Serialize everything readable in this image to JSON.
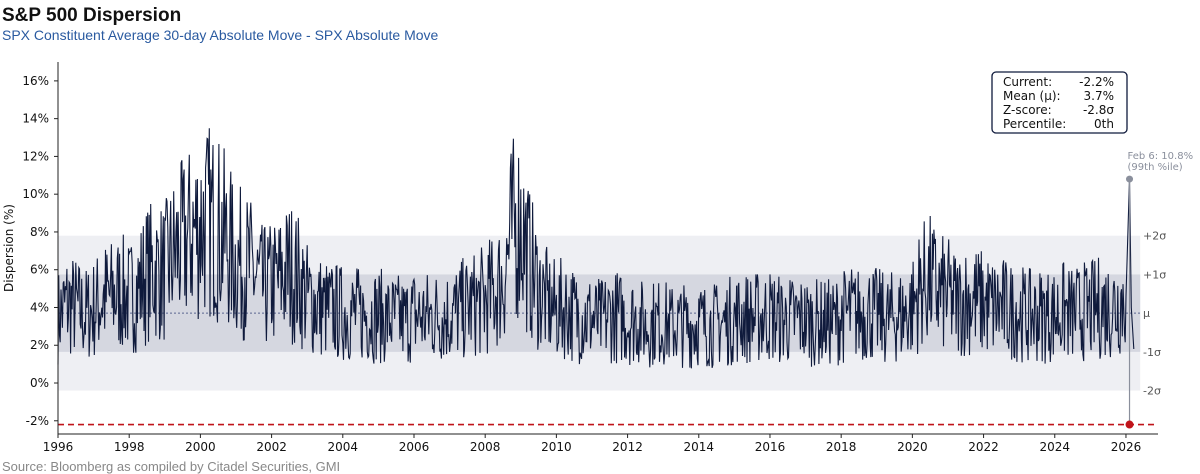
{
  "header": {
    "title": "S&P 500 Dispersion",
    "subtitle": "SPX Constituent Average 30-day Absolute Move - SPX Absolute Move"
  },
  "footer": {
    "source": "Source: Bloomberg as compiled by Citadel Securities, GMI"
  },
  "stats_box": {
    "rows": [
      {
        "label": "Current:",
        "value": "-2.2%"
      },
      {
        "label": "Mean (μ):",
        "value": "3.7%"
      },
      {
        "label": "Z-score:",
        "value": "-2.8σ"
      },
      {
        "label": "Percentile:",
        "value": "0th"
      }
    ]
  },
  "annotation": {
    "line1": "Feb 6: 10.8%",
    "line2": "(99th %ile)"
  },
  "colors": {
    "series": "#0f1a3c",
    "inner_band": "#d5d7e0",
    "outer_band": "#eeeff3",
    "current_line": "#c0141a"
  },
  "chart_data": {
    "type": "line",
    "ylabel": "Dispersion (%)",
    "xlim": [
      1996,
      2026.9
    ],
    "ylim": [
      -2.7,
      17
    ],
    "x_ticks": [
      1996,
      1998,
      2000,
      2002,
      2004,
      2006,
      2008,
      2010,
      2012,
      2014,
      2016,
      2018,
      2020,
      2022,
      2024,
      2026
    ],
    "x_tick_labels": [
      "1996",
      "1998",
      "2000",
      "2002",
      "2004",
      "2006",
      "2008",
      "2010",
      "2012",
      "2014",
      "2016",
      "2018",
      "2020",
      "2022",
      "2024",
      "2026"
    ],
    "y_ticks": [
      -2,
      0,
      2,
      4,
      6,
      8,
      10,
      12,
      14,
      16
    ],
    "y_tick_labels": [
      "-2%",
      "0%",
      "2%",
      "4%",
      "6%",
      "8%",
      "10%",
      "12%",
      "14%",
      "16%"
    ],
    "mean": 3.7,
    "sigma": 2.05,
    "sigma_labels": [
      "+2σ",
      "+1σ",
      "μ",
      "-1σ",
      "-2σ"
    ],
    "current": -2.2,
    "peak": {
      "x": 2026.1,
      "y": 10.8
    },
    "grid": false,
    "series": [
      {
        "x": [
          1996.0,
          1996.25,
          1996.5,
          1996.75,
          1997.0,
          1997.25,
          1997.5,
          1997.75,
          1998.0,
          1998.25,
          1998.5,
          1998.75,
          1999.0,
          1999.25,
          1999.5,
          1999.75,
          2000.0,
          2000.25,
          2000.5,
          2000.75,
          2001.0,
          2001.25,
          2001.5,
          2001.75,
          2002.0,
          2002.25,
          2002.5,
          2002.75,
          2003.0,
          2003.25,
          2003.5,
          2003.75,
          2004.0,
          2004.25,
          2004.5,
          2004.75,
          2005.0,
          2005.25,
          2005.5,
          2005.75,
          2006.0,
          2006.25,
          2006.5,
          2006.75,
          2007.0,
          2007.25,
          2007.5,
          2007.75,
          2008.0,
          2008.25,
          2008.5,
          2008.75,
          2009.0,
          2009.25,
          2009.5,
          2009.75,
          2010.0,
          2010.25,
          2010.5,
          2010.75,
          2011.0,
          2011.25,
          2011.5,
          2011.75,
          2012.0,
          2012.25,
          2012.5,
          2012.75,
          2013.0,
          2013.25,
          2013.5,
          2013.75,
          2014.0,
          2014.25,
          2014.5,
          2014.75,
          2015.0,
          2015.25,
          2015.5,
          2015.75,
          2016.0,
          2016.25,
          2016.5,
          2016.75,
          2017.0,
          2017.25,
          2017.5,
          2017.75,
          2018.0,
          2018.25,
          2018.5,
          2018.75,
          2019.0,
          2019.25,
          2019.5,
          2019.75,
          2020.0,
          2020.25,
          2020.5,
          2020.75,
          2021.0,
          2021.25,
          2021.5,
          2021.75,
          2022.0,
          2022.25,
          2022.5,
          2022.75,
          2023.0,
          2023.25,
          2023.5,
          2023.75,
          2024.0,
          2024.25,
          2024.5,
          2024.75,
          2025.0,
          2025.25,
          2025.5,
          2025.75,
          2026.0,
          2026.1,
          2026.2
        ],
        "y": [
          3.5,
          4.2,
          4.0,
          3.6,
          3.9,
          4.5,
          4.6,
          4.8,
          4.5,
          5.0,
          5.8,
          6.0,
          5.8,
          6.8,
          7.3,
          7.9,
          8.4,
          8.6,
          8.2,
          7.4,
          6.4,
          6.3,
          5.8,
          5.0,
          5.2,
          5.5,
          6.0,
          5.5,
          4.5,
          4.2,
          3.9,
          3.8,
          3.7,
          3.7,
          3.6,
          3.6,
          3.6,
          3.4,
          3.4,
          3.3,
          3.6,
          3.5,
          3.5,
          3.6,
          3.6,
          3.8,
          4.0,
          4.2,
          4.4,
          4.8,
          5.5,
          8.0,
          8.5,
          6.3,
          5.0,
          4.2,
          3.8,
          4.0,
          3.6,
          3.5,
          3.4,
          3.2,
          3.6,
          3.5,
          3.3,
          3.4,
          3.0,
          3.2,
          3.2,
          3.0,
          3.1,
          3.0,
          3.2,
          3.0,
          3.1,
          3.2,
          3.4,
          3.5,
          3.4,
          3.5,
          3.6,
          3.4,
          3.3,
          3.4,
          3.3,
          3.2,
          3.2,
          3.2,
          3.5,
          3.7,
          3.6,
          3.8,
          3.6,
          3.4,
          3.5,
          3.6,
          4.0,
          5.2,
          5.4,
          4.8,
          4.6,
          4.2,
          4.4,
          4.4,
          4.2,
          4.0,
          4.0,
          3.8,
          3.8,
          3.5,
          3.6,
          3.6,
          3.6,
          3.8,
          3.6,
          3.8,
          3.8,
          4.0,
          4.0,
          4.2,
          4.6,
          10.8,
          -2.2
        ]
      }
    ]
  }
}
